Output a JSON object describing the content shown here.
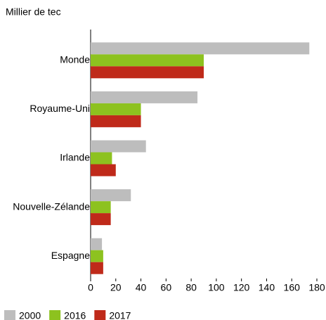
{
  "chart_data": {
    "type": "hbar",
    "unit_label": "Millier de tec",
    "categories": [
      "Monde",
      "Royaume-Uni",
      "Irlande",
      "Nouvelle-Zélande",
      "Espagne"
    ],
    "series": [
      {
        "name": "2000",
        "color": "#bdbdbd",
        "values": [
          174,
          85,
          44,
          32,
          9
        ]
      },
      {
        "name": "2016",
        "color": "#8dc21f",
        "values": [
          90,
          40,
          17,
          16,
          10
        ]
      },
      {
        "name": "2017",
        "color": "#bf2a1a",
        "values": [
          90,
          40,
          20,
          16,
          10
        ]
      }
    ],
    "xlim": [
      0,
      180
    ],
    "xticks": [
      0,
      20,
      40,
      60,
      80,
      100,
      120,
      140,
      160,
      180
    ]
  }
}
